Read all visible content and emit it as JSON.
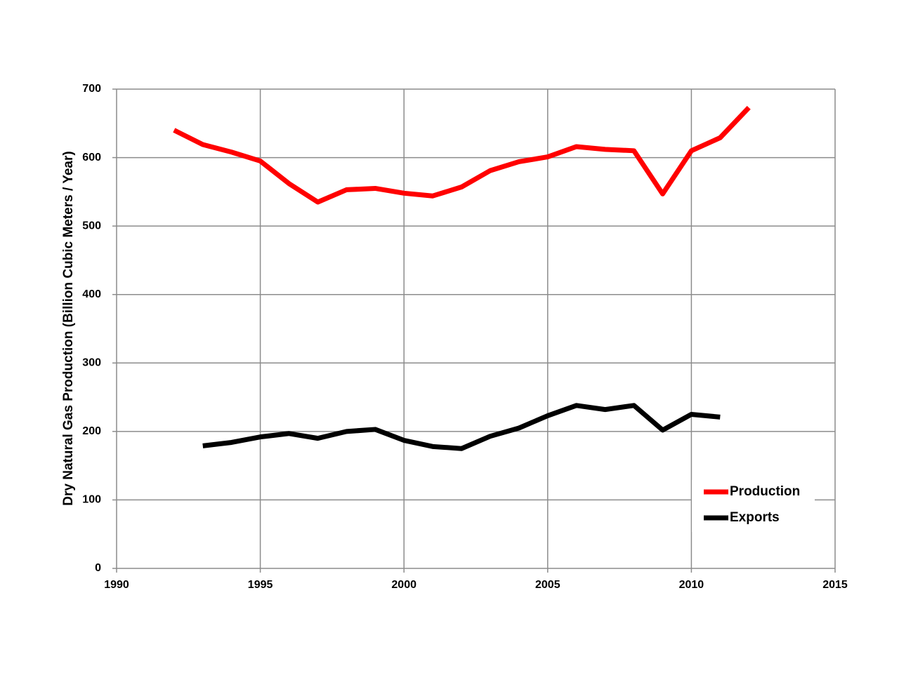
{
  "chart_data": {
    "type": "line",
    "y_label": "Dry Natural Gas Production (Billion Cubic Meters / Year)",
    "x": [
      1992,
      1993,
      1994,
      1995,
      1996,
      1997,
      1998,
      1999,
      2000,
      2001,
      2002,
      2003,
      2004,
      2005,
      2006,
      2007,
      2008,
      2009,
      2010,
      2011,
      2012
    ],
    "series": [
      {
        "name": "Production",
        "color": "#ff0000",
        "values": [
          640,
          619,
          608,
          595,
          562,
          535,
          553,
          555,
          548,
          544,
          557,
          581,
          594,
          601,
          616,
          612,
          610,
          547,
          610,
          629,
          673
        ]
      },
      {
        "name": "Exports",
        "color": "#000000",
        "values": [
          null,
          179,
          184,
          192,
          197,
          190,
          200,
          203,
          187,
          178,
          175,
          193,
          205,
          223,
          238,
          232,
          238,
          202,
          225,
          221,
          null
        ]
      }
    ],
    "xlim": [
      1990,
      2015
    ],
    "xticks": [
      1990,
      1995,
      2000,
      2005,
      2010,
      2015
    ],
    "ylim": [
      0,
      700
    ],
    "yticks": [
      0,
      100,
      200,
      300,
      400,
      500,
      600,
      700
    ],
    "grid": true,
    "legend": "lower right"
  }
}
